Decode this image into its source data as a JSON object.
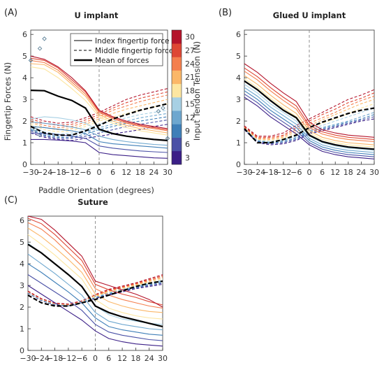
{
  "colors": {
    "tension_palette": [
      "#3b1f87",
      "#4a51a6",
      "#3f7fb8",
      "#6ea7cf",
      "#a7d0e4",
      "#fde6a0",
      "#fbb768",
      "#f47f4e",
      "#de4734",
      "#b4142b"
    ],
    "mean": "#000000",
    "outlier": "#5a7f96"
  },
  "labels": {
    "ylabel": "Fingertip Forces (N)",
    "xlabel": "Paddle Orientation (degrees)",
    "colorbar_label": "Input Tendon Tension (N)",
    "colorbar_ticks": [
      "3",
      "6",
      "9",
      "12",
      "15",
      "18",
      "21",
      "24",
      "27",
      "30"
    ]
  },
  "legend": {
    "items": [
      {
        "label": "Index fingertip force",
        "style": "solid"
      },
      {
        "label": "Middle fingertip force",
        "style": "dashed"
      },
      {
        "label": "Mean of forces",
        "style": "bold"
      }
    ]
  },
  "chart_data": [
    {
      "type": "line",
      "panel_label": "(A)",
      "title": "U implant",
      "x": [
        -30,
        -24,
        -18,
        -12,
        -6,
        0,
        6,
        12,
        18,
        24,
        30
      ],
      "x_tick_labels": [
        "−30",
        "−24",
        "−18",
        "−12",
        "−6",
        "0",
        "6",
        "12",
        "18",
        "24",
        "30"
      ],
      "xlim": [
        -30,
        30
      ],
      "ylim": [
        0,
        6.2
      ],
      "y_ticks": [
        0,
        1,
        2,
        3,
        4,
        5,
        6
      ],
      "tensions": [
        3,
        6,
        9,
        12,
        15,
        18,
        21,
        24,
        27,
        30
      ],
      "index_series": [
        [
          1.15,
          1.15,
          1.12,
          1.08,
          1.0,
          0.55,
          0.45,
          0.4,
          0.35,
          0.3,
          0.28
        ],
        [
          1.45,
          1.42,
          1.38,
          1.3,
          1.2,
          0.85,
          0.75,
          0.68,
          0.62,
          0.58,
          0.55
        ],
        [
          1.75,
          1.7,
          1.62,
          1.55,
          1.42,
          1.05,
          0.95,
          0.9,
          0.85,
          0.8,
          0.75
        ],
        [
          1.95,
          1.9,
          1.82,
          1.72,
          1.6,
          1.3,
          1.15,
          1.05,
          0.98,
          0.92,
          0.88
        ],
        [
          2.1,
          2.2,
          2.15,
          2.05,
          1.9,
          1.55,
          1.4,
          1.3,
          1.2,
          1.15,
          1.1
        ],
        [
          4.5,
          4.4,
          4.0,
          3.5,
          2.95,
          2.2,
          1.9,
          1.7,
          1.55,
          1.45,
          1.35
        ],
        [
          4.65,
          4.6,
          4.25,
          3.7,
          3.15,
          2.3,
          2.0,
          1.8,
          1.65,
          1.55,
          1.45
        ],
        [
          4.8,
          4.7,
          4.35,
          3.8,
          3.25,
          2.4,
          2.1,
          1.9,
          1.75,
          1.65,
          1.55
        ],
        [
          4.9,
          4.8,
          4.45,
          3.9,
          3.35,
          2.45,
          2.15,
          1.95,
          1.8,
          1.7,
          1.6
        ],
        [
          5.0,
          4.85,
          4.5,
          4.0,
          3.4,
          2.5,
          2.2,
          2.0,
          1.85,
          1.75,
          1.65
        ]
      ],
      "middle_series": [
        [
          1.45,
          1.25,
          1.15,
          1.1,
          1.2,
          1.3,
          1.4,
          1.5,
          1.6,
          1.75,
          1.85
        ],
        [
          1.55,
          1.3,
          1.2,
          1.2,
          1.3,
          1.45,
          1.6,
          1.75,
          1.85,
          1.95,
          2.05
        ],
        [
          1.6,
          1.35,
          1.25,
          1.25,
          1.4,
          1.6,
          1.75,
          1.9,
          2.0,
          2.1,
          2.2
        ],
        [
          1.65,
          1.4,
          1.3,
          1.35,
          1.5,
          1.7,
          1.85,
          2.0,
          2.15,
          2.25,
          2.35
        ],
        [
          1.75,
          1.5,
          1.4,
          1.45,
          1.6,
          1.85,
          2.0,
          2.15,
          2.3,
          2.4,
          2.5
        ],
        [
          1.85,
          1.6,
          1.5,
          1.55,
          1.75,
          2.0,
          2.2,
          2.35,
          2.5,
          2.65,
          2.8
        ],
        [
          1.95,
          1.7,
          1.6,
          1.65,
          1.85,
          2.1,
          2.35,
          2.55,
          2.7,
          2.85,
          3.0
        ],
        [
          2.0,
          1.8,
          1.7,
          1.75,
          1.95,
          2.2,
          2.5,
          2.7,
          2.9,
          3.05,
          3.2
        ],
        [
          2.1,
          1.9,
          1.8,
          1.85,
          2.05,
          2.3,
          2.6,
          2.85,
          3.05,
          3.2,
          3.35
        ],
        [
          2.2,
          2.0,
          1.9,
          1.95,
          2.15,
          2.4,
          2.7,
          3.0,
          3.2,
          3.35,
          3.5
        ]
      ],
      "mean_index": [
        3.42,
        3.4,
        3.15,
        2.95,
        2.6,
        1.62,
        1.42,
        1.3,
        1.22,
        1.15,
        1.1
      ],
      "mean_middle": [
        1.75,
        1.45,
        1.35,
        1.35,
        1.55,
        1.8,
        2.1,
        2.3,
        2.5,
        2.65,
        2.8
      ],
      "outliers": [
        {
          "x": -30,
          "y": 4.8
        },
        {
          "x": -26,
          "y": 5.35
        },
        {
          "x": -24,
          "y": 5.8
        },
        {
          "x": -28,
          "y": 1.6
        },
        {
          "x": -26,
          "y": 1.35
        },
        {
          "x": 26,
          "y": 2.45
        },
        {
          "x": 28,
          "y": 2.6
        },
        {
          "x": 30,
          "y": 1.2
        }
      ]
    },
    {
      "type": "line",
      "panel_label": "(B)",
      "title": "Glued U implant",
      "x": [
        -30,
        -24,
        -18,
        -12,
        -6,
        0,
        6,
        12,
        18,
        24,
        30
      ],
      "x_tick_labels": [
        "−30",
        "−24",
        "−18",
        "−12",
        "−6",
        "0",
        "6",
        "12",
        "18",
        "24",
        "30"
      ],
      "xlim": [
        -30,
        30
      ],
      "ylim": [
        0,
        6.2
      ],
      "y_ticks": [
        0,
        1,
        2,
        3,
        4,
        5,
        6
      ],
      "tensions": [
        3,
        6,
        9,
        12,
        15,
        18,
        21,
        24,
        27,
        30
      ],
      "index_series": [
        [
          3.1,
          2.7,
          2.2,
          1.8,
          1.4,
          0.9,
          0.6,
          0.45,
          0.35,
          0.3,
          0.25
        ],
        [
          3.25,
          2.85,
          2.35,
          1.95,
          1.55,
          1.0,
          0.7,
          0.55,
          0.45,
          0.4,
          0.35
        ],
        [
          3.4,
          3.0,
          2.5,
          2.1,
          1.7,
          1.1,
          0.8,
          0.65,
          0.55,
          0.5,
          0.45
        ],
        [
          3.55,
          3.15,
          2.65,
          2.25,
          1.85,
          1.2,
          0.9,
          0.75,
          0.65,
          0.6,
          0.55
        ],
        [
          3.7,
          3.3,
          2.8,
          2.4,
          2.0,
          1.3,
          1.0,
          0.85,
          0.75,
          0.7,
          0.65
        ],
        [
          3.95,
          3.55,
          3.05,
          2.6,
          2.2,
          1.45,
          1.15,
          1.0,
          0.9,
          0.85,
          0.8
        ],
        [
          4.1,
          3.7,
          3.2,
          2.75,
          2.35,
          1.55,
          1.25,
          1.1,
          1.0,
          0.95,
          0.9
        ],
        [
          4.3,
          3.9,
          3.4,
          2.95,
          2.55,
          1.7,
          1.4,
          1.25,
          1.15,
          1.1,
          1.05
        ],
        [
          4.45,
          4.05,
          3.55,
          3.1,
          2.7,
          1.8,
          1.5,
          1.35,
          1.25,
          1.2,
          1.15
        ],
        [
          4.65,
          4.25,
          3.75,
          3.3,
          2.9,
          1.95,
          1.6,
          1.45,
          1.35,
          1.3,
          1.25
        ]
      ],
      "middle_series": [
        [
          1.6,
          1.0,
          0.9,
          0.95,
          1.1,
          1.4,
          1.55,
          1.7,
          1.85,
          2.0,
          2.1
        ],
        [
          1.62,
          1.05,
          0.95,
          1.0,
          1.15,
          1.45,
          1.6,
          1.75,
          1.9,
          2.05,
          2.2
        ],
        [
          1.64,
          1.08,
          0.98,
          1.05,
          1.2,
          1.5,
          1.65,
          1.8,
          1.95,
          2.1,
          2.3
        ],
        [
          1.65,
          1.1,
          1.0,
          1.1,
          1.25,
          1.55,
          1.7,
          1.85,
          2.0,
          2.2,
          2.4
        ],
        [
          1.66,
          1.12,
          1.05,
          1.15,
          1.3,
          1.6,
          1.8,
          2.0,
          2.2,
          2.4,
          2.6
        ],
        [
          1.68,
          1.15,
          1.1,
          1.2,
          1.4,
          1.7,
          1.9,
          2.1,
          2.35,
          2.6,
          2.8
        ],
        [
          1.7,
          1.18,
          1.15,
          1.25,
          1.5,
          1.8,
          2.05,
          2.3,
          2.55,
          2.8,
          3.0
        ],
        [
          1.72,
          1.2,
          1.2,
          1.3,
          1.6,
          1.9,
          2.15,
          2.4,
          2.7,
          2.95,
          3.15
        ],
        [
          1.75,
          1.25,
          1.25,
          1.35,
          1.7,
          2.0,
          2.3,
          2.55,
          2.85,
          3.05,
          3.3
        ],
        [
          1.78,
          1.3,
          1.3,
          1.45,
          1.8,
          2.1,
          2.4,
          2.7,
          3.0,
          3.2,
          3.45
        ]
      ],
      "mean_index": [
        3.85,
        3.45,
        2.95,
        2.5,
        2.15,
        1.35,
        1.05,
        0.9,
        0.8,
        0.75,
        0.7
      ],
      "mean_middle": [
        1.65,
        1.0,
        1.0,
        1.15,
        1.35,
        1.7,
        1.95,
        2.15,
        2.35,
        2.5,
        2.6
      ],
      "outliers": []
    },
    {
      "type": "line",
      "panel_label": "(C)",
      "title": "Suture",
      "x": [
        -30,
        -24,
        -18,
        -12,
        -6,
        0,
        6,
        12,
        18,
        24,
        30
      ],
      "x_tick_labels": [
        "−30",
        "−24",
        "−18",
        "−12",
        "−6",
        "0",
        "6",
        "12",
        "18",
        "24",
        "30"
      ],
      "xlim": [
        -30,
        30
      ],
      "ylim": [
        0,
        6.2
      ],
      "y_ticks": [
        0,
        1,
        2,
        3,
        4,
        5,
        6
      ],
      "tensions": [
        3,
        6,
        9,
        12,
        15,
        18,
        21,
        24,
        27,
        30
      ],
      "index_series": [
        [
          3.0,
          2.6,
          2.2,
          1.8,
          1.4,
          0.9,
          0.55,
          0.4,
          0.3,
          0.25,
          0.2
        ],
        [
          3.5,
          3.1,
          2.7,
          2.3,
          1.85,
          1.2,
          0.85,
          0.7,
          0.6,
          0.5,
          0.45
        ],
        [
          4.0,
          3.6,
          3.15,
          2.7,
          2.2,
          1.5,
          1.1,
          0.95,
          0.85,
          0.75,
          0.7
        ],
        [
          4.45,
          4.0,
          3.55,
          3.05,
          2.55,
          1.75,
          1.35,
          1.2,
          1.1,
          1.0,
          0.95
        ],
        [
          4.95,
          4.5,
          4.0,
          3.5,
          2.95,
          2.05,
          1.65,
          1.45,
          1.35,
          1.25,
          1.2
        ],
        [
          5.35,
          4.9,
          4.4,
          3.85,
          3.3,
          2.35,
          1.95,
          1.75,
          1.6,
          1.5,
          1.45
        ],
        [
          5.65,
          5.25,
          4.75,
          4.2,
          3.6,
          2.6,
          2.25,
          2.05,
          1.9,
          1.8,
          1.75
        ],
        [
          5.9,
          5.6,
          5.1,
          4.5,
          3.9,
          2.85,
          2.55,
          2.35,
          2.2,
          2.05,
          1.95
        ],
        [
          6.1,
          5.85,
          5.35,
          4.75,
          4.15,
          3.05,
          2.8,
          2.6,
          2.45,
          2.25,
          2.1
        ],
        [
          6.2,
          6.05,
          5.55,
          4.95,
          4.35,
          3.2,
          3.0,
          2.8,
          2.6,
          2.35,
          2.0
        ]
      ],
      "middle_series": [
        [
          2.65,
          2.3,
          2.1,
          2.05,
          2.2,
          2.4,
          2.55,
          2.7,
          2.85,
          2.95,
          3.05
        ],
        [
          2.66,
          2.31,
          2.11,
          2.06,
          2.21,
          2.42,
          2.58,
          2.73,
          2.88,
          2.99,
          3.1
        ],
        [
          2.67,
          2.32,
          2.12,
          2.07,
          2.22,
          2.44,
          2.61,
          2.76,
          2.91,
          3.03,
          3.15
        ],
        [
          2.68,
          2.33,
          2.13,
          2.08,
          2.23,
          2.46,
          2.64,
          2.79,
          2.94,
          3.07,
          3.2
        ],
        [
          2.69,
          2.34,
          2.14,
          2.09,
          2.24,
          2.48,
          2.67,
          2.82,
          2.97,
          3.11,
          3.25
        ],
        [
          2.7,
          2.35,
          2.15,
          2.1,
          2.25,
          2.5,
          2.7,
          2.85,
          3.0,
          3.15,
          3.3
        ],
        [
          2.71,
          2.36,
          2.16,
          2.11,
          2.26,
          2.52,
          2.73,
          2.88,
          3.03,
          3.19,
          3.35
        ],
        [
          2.72,
          2.37,
          2.17,
          2.12,
          2.27,
          2.54,
          2.76,
          2.91,
          3.06,
          3.23,
          3.4
        ],
        [
          2.73,
          2.38,
          2.18,
          2.13,
          2.28,
          2.56,
          2.79,
          2.94,
          3.09,
          3.27,
          3.45
        ],
        [
          2.74,
          2.39,
          2.19,
          2.14,
          2.29,
          2.58,
          2.82,
          2.97,
          3.12,
          3.31,
          3.5
        ]
      ],
      "mean_index": [
        4.9,
        4.5,
        4.0,
        3.5,
        2.95,
        2.05,
        1.75,
        1.55,
        1.4,
        1.25,
        1.1
      ],
      "mean_middle": [
        2.55,
        2.2,
        2.05,
        2.05,
        2.2,
        2.35,
        2.55,
        2.75,
        2.95,
        3.1,
        3.2
      ],
      "outliers": []
    }
  ]
}
